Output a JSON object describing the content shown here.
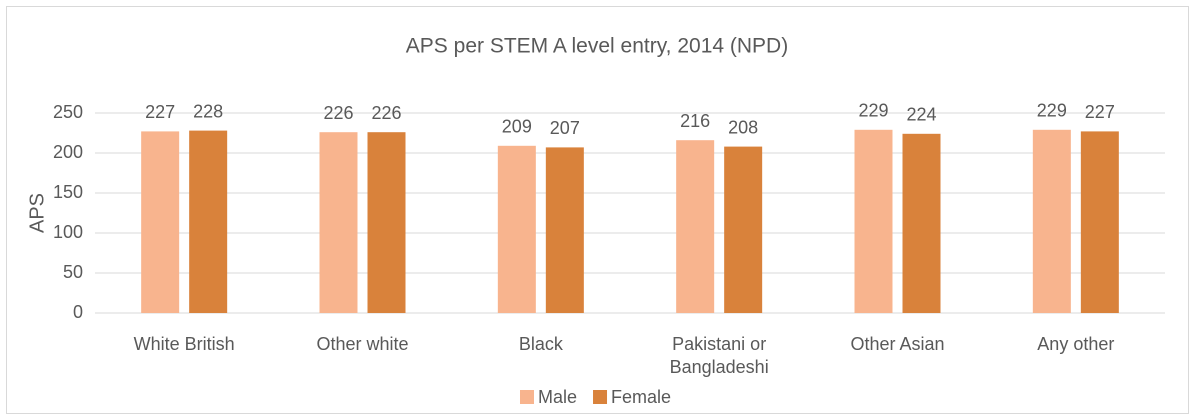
{
  "chart_data": {
    "type": "bar",
    "title": "APS per STEM A level entry, 2014 (NPD)",
    "y_label": "APS",
    "categories": [
      "White British",
      "Other white",
      "Black",
      "Pakistani or Bangladeshi",
      "Other Asian",
      "Any other"
    ],
    "series": [
      {
        "name": "Male",
        "color": "#f8b48e",
        "values": [
          227,
          226,
          209,
          216,
          229,
          229
        ]
      },
      {
        "name": "Female",
        "color": "#d9823b",
        "values": [
          228,
          226,
          207,
          208,
          224,
          227
        ]
      }
    ],
    "ylim": [
      0,
      250
    ],
    "yticks": [
      0,
      50,
      100,
      150,
      200,
      250
    ],
    "grid": true,
    "legend": "bottom"
  }
}
